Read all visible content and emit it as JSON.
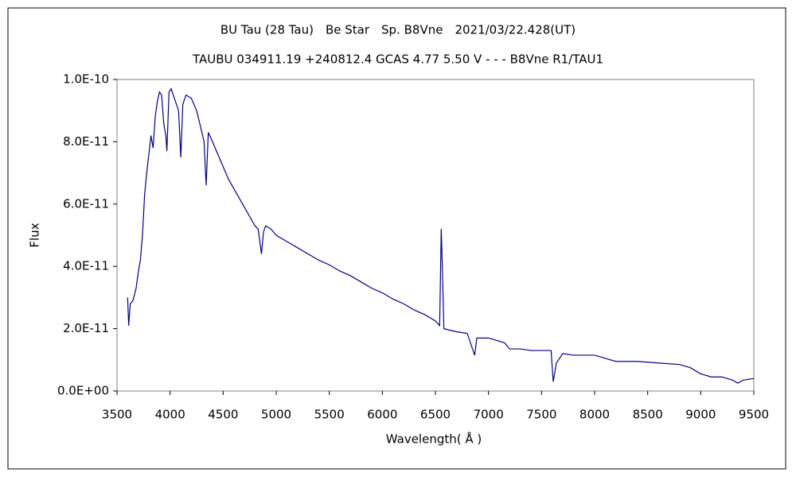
{
  "chart_data": {
    "type": "line",
    "title": "BU Tau (28 Tau)　Be Star　Sp. B8Vne　2021/03/22.428(UT)",
    "subtitle": "TAUBU 034911.19 +240812.4 GCAS 4.77 5.50 V - - - B8Vne R1/TAU1",
    "xlabel": "Wavelength( Å )",
    "ylabel": "Flux",
    "x": [
      3600,
      3610,
      3625,
      3650,
      3680,
      3700,
      3720,
      3740,
      3760,
      3780,
      3800,
      3820,
      3840,
      3860,
      3880,
      3900,
      3920,
      3940,
      3960,
      3970,
      3990,
      4010,
      4030,
      4060,
      4080,
      4101,
      4120,
      4150,
      4200,
      4250,
      4300,
      4320,
      4340,
      4360,
      4400,
      4450,
      4500,
      4550,
      4600,
      4650,
      4700,
      4750,
      4800,
      4830,
      4861,
      4880,
      4900,
      4950,
      5000,
      5100,
      5200,
      5300,
      5400,
      5500,
      5600,
      5700,
      5800,
      5900,
      6000,
      6100,
      6200,
      6300,
      6400,
      6500,
      6540,
      6555,
      6565,
      6580,
      6700,
      6800,
      6870,
      6890,
      7000,
      7150,
      7200,
      7300,
      7400,
      7500,
      7590,
      7610,
      7640,
      7700,
      7800,
      8000,
      8100,
      8200,
      8400,
      8600,
      8800,
      8900,
      9000,
      9100,
      9200,
      9300,
      9350,
      9400,
      9500
    ],
    "series": [
      {
        "name": "Flux",
        "color": "#000080",
        "values": [
          3e-11,
          2.1e-11,
          2.8e-11,
          2.9e-11,
          3.3e-11,
          3.8e-11,
          4.2e-11,
          5e-11,
          6.3e-11,
          7e-11,
          7.6e-11,
          8.2e-11,
          7.8e-11,
          8.8e-11,
          9.3e-11,
          9.6e-11,
          9.5e-11,
          8.6e-11,
          8.2e-11,
          7.7e-11,
          9.6e-11,
          9.7e-11,
          9.5e-11,
          9.2e-11,
          9e-11,
          7.5e-11,
          9.2e-11,
          9.5e-11,
          9.4e-11,
          9e-11,
          8.3e-11,
          8e-11,
          6.6e-11,
          8.3e-11,
          8e-11,
          7.6e-11,
          7.2e-11,
          6.8e-11,
          6.5e-11,
          6.2e-11,
          5.9e-11,
          5.6e-11,
          5.3e-11,
          5.2e-11,
          4.4e-11,
          5.1e-11,
          5.3e-11,
          5.2e-11,
          5e-11,
          4.8e-11,
          4.6e-11,
          4.4e-11,
          4.2e-11,
          4.05e-11,
          3.85e-11,
          3.7e-11,
          3.5e-11,
          3.3e-11,
          3.15e-11,
          2.95e-11,
          2.8e-11,
          2.6e-11,
          2.45e-11,
          2.25e-11,
          2.1e-11,
          5.2e-11,
          4e-11,
          2e-11,
          1.9e-11,
          1.85e-11,
          1.15e-11,
          1.7e-11,
          1.7e-11,
          1.55e-11,
          1.35e-11,
          1.35e-11,
          1.3e-11,
          1.3e-11,
          1.3e-11,
          3e-12,
          9e-12,
          1.2e-11,
          1.15e-11,
          1.15e-11,
          1.05e-11,
          9.5e-12,
          9.5e-12,
          9e-12,
          8.5e-12,
          7.5e-12,
          5.5e-12,
          4.5e-12,
          4.5e-12,
          3.5e-12,
          2.5e-12,
          3.5e-12,
          4e-12
        ]
      }
    ],
    "xlim": [
      3500,
      9500
    ],
    "xticks": [
      3500,
      4000,
      4500,
      5000,
      5500,
      6000,
      6500,
      7000,
      7500,
      8000,
      8500,
      9000,
      9500
    ],
    "ylim": [
      0,
      1e-10
    ],
    "yticks": [
      {
        "value": 0,
        "label": "0.0E+00"
      },
      {
        "value": 2e-11,
        "label": "2.0E-11"
      },
      {
        "value": 4e-11,
        "label": "4.0E-11"
      },
      {
        "value": 6e-11,
        "label": "6.0E-11"
      },
      {
        "value": 8e-11,
        "label": "8.0E-11"
      },
      {
        "value": 1e-10,
        "label": "1.0E-10"
      }
    ],
    "grid": false
  }
}
